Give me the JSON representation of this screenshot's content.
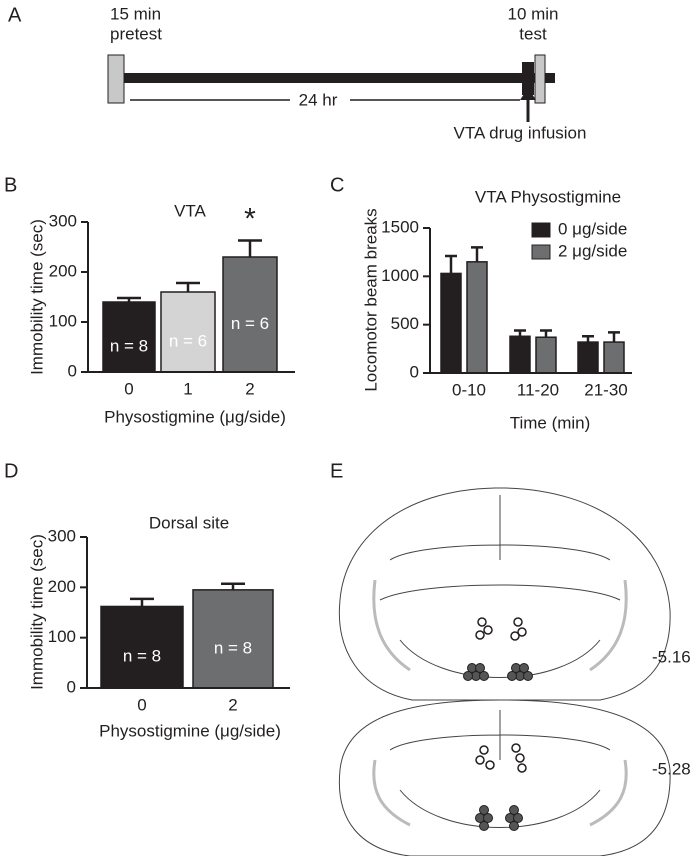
{
  "panel_labels": [
    "A",
    "B",
    "C",
    "D",
    "E"
  ],
  "timeline": {
    "pretest_time": "15 min",
    "pretest": "pretest",
    "test_time": "10 min",
    "test": "test",
    "interval": "24 hr",
    "infusion": "VTA drug infusion"
  },
  "brain": {
    "levels": [
      "-5.16",
      "-5.28"
    ]
  },
  "chart_data": [
    {
      "type": "bar",
      "title": "VTA",
      "y_label": "Immobility time (sec)",
      "x_label": "Physostigmine (μg/side)",
      "categories": [
        "0",
        "1",
        "2"
      ],
      "values": [
        140,
        160,
        230
      ],
      "errors": [
        8,
        18,
        33
      ],
      "colors": [
        "#231f20",
        "#d4d4d4",
        "#6d6e70"
      ],
      "annotations": [
        "n = 8",
        "n = 6",
        "n = 6"
      ],
      "significance": [
        null,
        null,
        "*"
      ],
      "ylim": [
        0,
        300
      ],
      "yticks": [
        0,
        100,
        200,
        300
      ]
    },
    {
      "type": "bar",
      "title": "VTA Physostigmine",
      "y_label": "Locomotor beam breaks",
      "x_label": "Time (min)",
      "categories": [
        "0-10",
        "11-20",
        "21-30"
      ],
      "series": [
        {
          "name": "0 μg/side",
          "color": "#231f20",
          "values": [
            1030,
            380,
            320
          ],
          "errors": [
            180,
            60,
            60
          ]
        },
        {
          "name": "2 μg/side",
          "color": "#6d6e70",
          "values": [
            1150,
            370,
            320
          ],
          "errors": [
            150,
            70,
            100
          ]
        }
      ],
      "ylim": [
        0,
        1500
      ],
      "yticks": [
        0,
        500,
        1000,
        1500
      ]
    },
    {
      "type": "bar",
      "title": "Dorsal site",
      "y_label": "Immobility time (sec)",
      "x_label": "Physostigmine (μg/side)",
      "categories": [
        "0",
        "2"
      ],
      "values": [
        162,
        195
      ],
      "errors": [
        15,
        12
      ],
      "colors": [
        "#231f20",
        "#6d6e70"
      ],
      "annotations": [
        "n = 8",
        "n = 8"
      ],
      "ylim": [
        0,
        300
      ],
      "yticks": [
        0,
        100,
        200,
        300
      ]
    }
  ]
}
